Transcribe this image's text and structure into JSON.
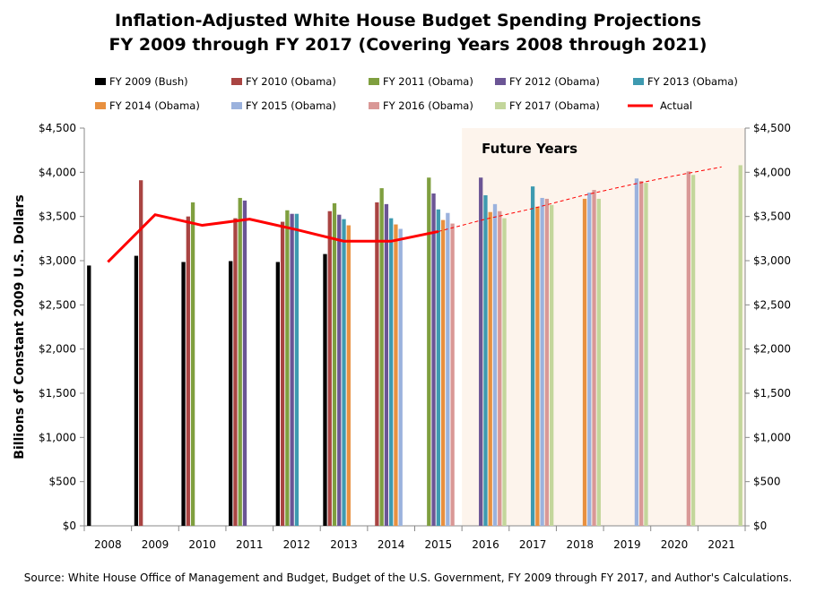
{
  "title_line1": "Inflation-Adjusted White House Budget Spending Projections",
  "title_line2": "FY 2009 through FY 2017 (Covering Years 2008 through 2021)",
  "source": "Source: White House Office of Management and Budget, Budget of the U.S. Government, FY 2009  through FY 2017,  and Author's Calculations.",
  "chart_data": {
    "type": "bar",
    "title": "Inflation-Adjusted White House Budget Spending Projections FY 2009 through FY 2017 (Covering Years 2008 through 2021)",
    "ylabel": "Billions of Constant 2009 U.S. Dollars",
    "xlabel": "",
    "ylim": [
      0,
      4500
    ],
    "yticks": [
      "$0",
      "$500",
      "$1,000",
      "$1,500",
      "$2,000",
      "$2,500",
      "$3,000",
      "$3,500",
      "$4,000",
      "$4,500"
    ],
    "ytick_values": [
      0,
      500,
      1000,
      1500,
      2000,
      2500,
      3000,
      3500,
      4000,
      4500
    ],
    "categories": [
      "2008",
      "2009",
      "2010",
      "2011",
      "2012",
      "2013",
      "2014",
      "2015",
      "2016",
      "2017",
      "2018",
      "2019",
      "2020",
      "2021"
    ],
    "legend_position": "top",
    "future_label": "Future Years",
    "future_start_category": "2016",
    "series": [
      {
        "name": "FY 2009 (Bush)",
        "color": "#000000",
        "values": [
          2945,
          3055,
          2985,
          2995,
          2985,
          3075,
          null,
          null,
          null,
          null,
          null,
          null,
          null,
          null
        ]
      },
      {
        "name": "FY 2010 (Obama)",
        "color": "#A94442",
        "values": [
          null,
          3910,
          3500,
          3480,
          3440,
          3560,
          3660,
          null,
          null,
          null,
          null,
          null,
          null,
          null
        ]
      },
      {
        "name": "FY 2011 (Obama)",
        "color": "#7F9F3F",
        "values": [
          null,
          null,
          3660,
          3710,
          3570,
          3650,
          3820,
          3940,
          null,
          null,
          null,
          null,
          null,
          null
        ]
      },
      {
        "name": "FY 2012 (Obama)",
        "color": "#6B5595",
        "values": [
          null,
          null,
          null,
          3680,
          3530,
          3520,
          3640,
          3760,
          3940,
          null,
          null,
          null,
          null,
          null
        ]
      },
      {
        "name": "FY 2013 (Obama)",
        "color": "#3E9AB0",
        "values": [
          null,
          null,
          null,
          null,
          3530,
          3470,
          3480,
          3580,
          3740,
          3840,
          null,
          null,
          null,
          null
        ]
      },
      {
        "name": "FY 2014 (Obama)",
        "color": "#E8903F",
        "values": [
          null,
          null,
          null,
          null,
          null,
          3400,
          3410,
          3460,
          3550,
          3610,
          3700,
          null,
          null,
          null
        ]
      },
      {
        "name": "FY 2015 (Obama)",
        "color": "#9BB2DD",
        "values": [
          null,
          null,
          null,
          null,
          null,
          null,
          3360,
          3540,
          3640,
          3710,
          3770,
          3930,
          null,
          null
        ]
      },
      {
        "name": "FY 2016 (Obama)",
        "color": "#D99896",
        "values": [
          null,
          null,
          null,
          null,
          null,
          null,
          null,
          3420,
          3560,
          3700,
          3800,
          3900,
          4010,
          null
        ]
      },
      {
        "name": "FY 2017 (Obama)",
        "color": "#C3D69B",
        "values": [
          null,
          null,
          null,
          null,
          null,
          null,
          null,
          null,
          3480,
          3630,
          3700,
          3880,
          3970,
          4080
        ]
      }
    ],
    "actual": {
      "name": "Actual",
      "color": "#FF0000",
      "values": [
        2985,
        3520,
        3400,
        3470,
        3350,
        3220,
        3220,
        3330,
        null,
        null,
        null,
        null,
        null,
        null
      ]
    },
    "actual_trend": {
      "color": "#FF0000",
      "values": [
        null,
        null,
        null,
        null,
        null,
        null,
        null,
        3330,
        3470,
        3590,
        3730,
        3850,
        3960,
        4060
      ]
    }
  }
}
